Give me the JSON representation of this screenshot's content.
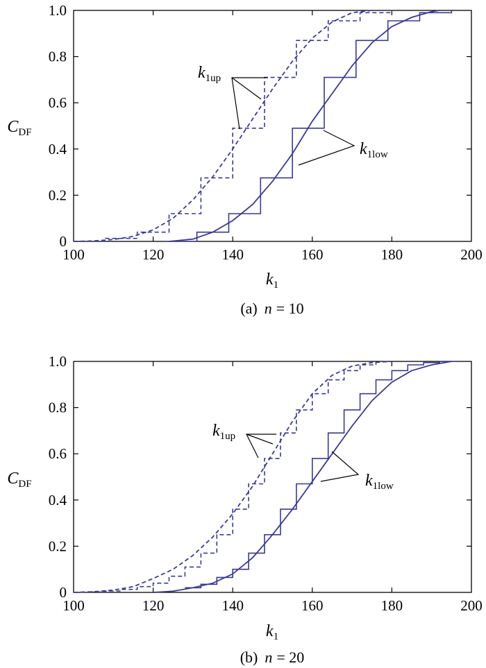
{
  "colors": {
    "series": "#3a3a8c",
    "axis": "#000000",
    "leader": "#000000"
  },
  "chart_data": [
    {
      "type": "line",
      "caption_prefix": "(a)",
      "caption_var": "n",
      "caption_eq": "= 10",
      "xlabel": "k",
      "xlabel_sub": "1",
      "ylabel": "C",
      "ylabel_sub": "DF",
      "xlim": [
        100,
        200
      ],
      "ylim": [
        0,
        1
      ],
      "xticks": [
        "100",
        "120",
        "140",
        "160",
        "180",
        "200"
      ],
      "yticks": [
        "0",
        "0.2",
        "0.4",
        "0.6",
        "0.8",
        "1.0"
      ],
      "grid": false,
      "series": [
        {
          "label": "k",
          "label_sub": "1up",
          "style": "dashed",
          "curve_x": [
            100,
            105,
            110,
            115,
            120,
            125,
            130,
            135,
            140,
            145,
            150,
            155,
            160,
            165,
            170,
            175
          ],
          "curve_y": [
            0.0,
            0.002,
            0.008,
            0.022,
            0.05,
            0.1,
            0.18,
            0.28,
            0.4,
            0.53,
            0.66,
            0.78,
            0.88,
            0.95,
            0.99,
            1.0
          ],
          "step_x": [
            100,
            108,
            116,
            124,
            132,
            140,
            148,
            156,
            164,
            172,
            180
          ],
          "step_y": [
            0.0,
            0.013,
            0.04,
            0.12,
            0.275,
            0.49,
            0.71,
            0.87,
            0.955,
            0.99,
            1.0
          ]
        },
        {
          "label": "k",
          "label_sub": "1low",
          "style": "solid",
          "curve_x": [
            124,
            130,
            135,
            140,
            145,
            150,
            155,
            160,
            165,
            170,
            175,
            180,
            185,
            190,
            192
          ],
          "curve_y": [
            0.0,
            0.01,
            0.04,
            0.09,
            0.16,
            0.26,
            0.38,
            0.52,
            0.64,
            0.76,
            0.86,
            0.93,
            0.97,
            0.995,
            1.0
          ],
          "step_x": [
            123,
            131,
            139,
            147,
            155,
            163,
            171,
            179,
            187,
            195
          ],
          "step_y": [
            0.0,
            0.04,
            0.12,
            0.275,
            0.49,
            0.71,
            0.87,
            0.955,
            0.99,
            1.0
          ]
        }
      ]
    },
    {
      "type": "line",
      "caption_prefix": "(b)",
      "caption_var": "n",
      "caption_eq": "= 20",
      "xlabel": "k",
      "xlabel_sub": "1",
      "ylabel": "C",
      "ylabel_sub": "DF",
      "xlim": [
        100,
        200
      ],
      "ylim": [
        0,
        1
      ],
      "xticks": [
        "100",
        "120",
        "140",
        "160",
        "180",
        "200"
      ],
      "yticks": [
        "0",
        "0.2",
        "0.4",
        "0.6",
        "0.8",
        "1.0"
      ],
      "grid": false,
      "series": [
        {
          "label": "k",
          "label_sub": "1up",
          "style": "dashed",
          "curve_x": [
            100,
            105,
            110,
            115,
            120,
            125,
            130,
            135,
            140,
            145,
            150,
            155,
            160,
            165,
            170,
            175,
            180
          ],
          "curve_y": [
            0.0,
            0.003,
            0.01,
            0.025,
            0.06,
            0.1,
            0.16,
            0.24,
            0.34,
            0.46,
            0.6,
            0.74,
            0.86,
            0.94,
            0.98,
            0.995,
            1.0
          ],
          "step_x": [
            104,
            108,
            112,
            116,
            120,
            124,
            128,
            132,
            136,
            140,
            144,
            148,
            152,
            156,
            160,
            164,
            168,
            172,
            176
          ],
          "step_y": [
            0.002,
            0.006,
            0.013,
            0.025,
            0.04,
            0.07,
            0.11,
            0.17,
            0.25,
            0.36,
            0.47,
            0.58,
            0.69,
            0.79,
            0.86,
            0.92,
            0.96,
            0.985,
            1.0
          ]
        },
        {
          "label": "k",
          "label_sub": "1low",
          "style": "solid",
          "curve_x": [
            120,
            125,
            130,
            135,
            140,
            145,
            150,
            155,
            160,
            165,
            170,
            175,
            180,
            185,
            190,
            195
          ],
          "curve_y": [
            0.0,
            0.005,
            0.02,
            0.04,
            0.08,
            0.15,
            0.25,
            0.36,
            0.48,
            0.6,
            0.72,
            0.83,
            0.91,
            0.96,
            0.985,
            1.0
          ],
          "step_x": [
            128,
            132,
            136,
            140,
            144,
            148,
            152,
            156,
            160,
            164,
            168,
            172,
            176,
            180,
            184,
            188,
            192,
            196
          ],
          "step_y": [
            0.02,
            0.035,
            0.065,
            0.1,
            0.17,
            0.25,
            0.36,
            0.47,
            0.58,
            0.69,
            0.79,
            0.86,
            0.92,
            0.96,
            0.985,
            0.995,
            1.0,
            1.0
          ]
        }
      ]
    }
  ]
}
